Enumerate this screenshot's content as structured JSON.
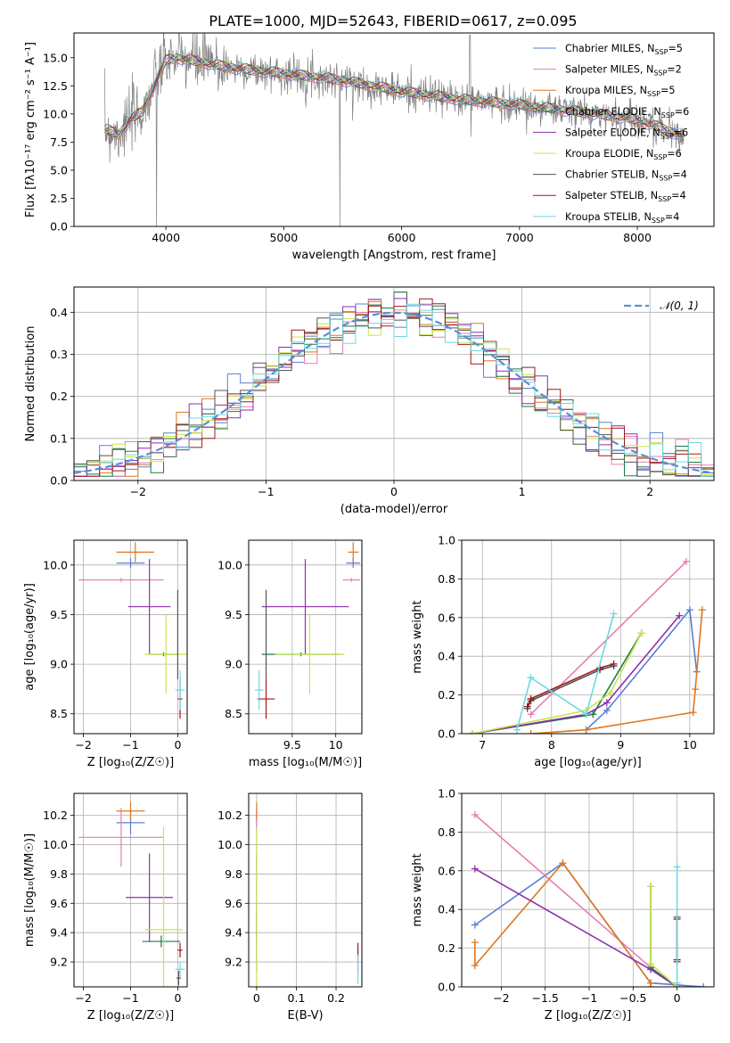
{
  "figure": {
    "title": "PLATE=1000, MJD=52643, FIBERID=0617, z=0.095"
  },
  "series_colors": {
    "Chabrier MILES": "#5b7fd6",
    "Salpeter MILES": "#e67fb0",
    "Kroupa MILES": "#dd7722",
    "Chabrier ELODIE": "#1f7a4a",
    "Salpeter ELODIE": "#8e2fb0",
    "Kroupa ELODIE": "#c8e64a",
    "Chabrier STELIB": "#555555",
    "Salpeter STELIB": "#a01818",
    "Kroupa STELIB": "#6ed8e0"
  },
  "chart_data": [
    {
      "id": "spectrum",
      "type": "line",
      "title": "PLATE=1000, MJD=52643, FIBERID=0617, z=0.095",
      "xlabel": "wavelength [Angstrom, rest frame]",
      "ylabel": "Flux [fλ10⁻¹⁷ erg cm⁻² s⁻¹ A⁻¹]",
      "xlim": [
        3220,
        8650
      ],
      "ylim": [
        0,
        17.2
      ],
      "xticks": [
        4000,
        5000,
        6000,
        7000,
        8000
      ],
      "yticks": [
        0.0,
        2.5,
        5.0,
        7.5,
        10.0,
        12.5,
        15.0
      ],
      "legend_position": "top-right",
      "legend": [
        {
          "label": "Chabrier MILES, N",
          "sub": "SSP",
          "suffix": "=5"
        },
        {
          "label": "Salpeter MILES, N",
          "sub": "SSP",
          "suffix": "=2"
        },
        {
          "label": "Kroupa MILES, N",
          "sub": "SSP",
          "suffix": "=5"
        },
        {
          "label": "Chabrier ELODIE, N",
          "sub": "SSP",
          "suffix": "=6"
        },
        {
          "label": "Salpeter ELODIE, N",
          "sub": "SSP",
          "suffix": "=6"
        },
        {
          "label": "Kroupa ELODIE, N",
          "sub": "SSP",
          "suffix": "=6"
        },
        {
          "label": "Chabrier STELIB, N",
          "sub": "SSP",
          "suffix": "=4"
        },
        {
          "label": "Salpeter STELIB, N",
          "sub": "SSP",
          "suffix": "=4"
        },
        {
          "label": "Kroupa STELIB, N",
          "sub": "SSP",
          "suffix": "=4"
        }
      ],
      "data_envelope": {
        "wavelength": [
          3500,
          3600,
          3700,
          3800,
          3900,
          4000,
          4100,
          4300,
          4500,
          4800,
          5000,
          5500,
          6000,
          6500,
          7000,
          7500,
          8000,
          8400
        ],
        "flux": [
          8.6,
          8.2,
          9.5,
          10.2,
          12.5,
          14.8,
          15.0,
          14.6,
          14.2,
          13.8,
          13.6,
          13.0,
          12.0,
          11.3,
          10.8,
          10.2,
          9.5,
          8.0
        ]
      }
    },
    {
      "id": "residuals",
      "type": "line",
      "xlabel": "(data-model)/error",
      "ylabel": "Normed distribution",
      "xlim": [
        -2.5,
        2.5
      ],
      "ylim": [
        0,
        0.46
      ],
      "xticks": [
        -2,
        -1,
        0,
        1,
        2
      ],
      "yticks": [
        0.0,
        0.1,
        0.2,
        0.3,
        0.4
      ],
      "grid": true,
      "legend_position": "top-right",
      "legend": [
        {
          "label": "𝒩(0, 1)"
        }
      ],
      "gaussian": {
        "mu": 0,
        "sigma": 1
      }
    },
    {
      "id": "age_vs_Z",
      "type": "scatter",
      "xlabel": "Z [log₁₀(Z/Z☉)]",
      "ylabel": "age  [log₁₀(age/yr)]",
      "xlim": [
        -2.2,
        0.2
      ],
      "ylim": [
        8.3,
        10.25
      ],
      "xticks": [
        -2,
        -1,
        0
      ],
      "yticks": [
        8.5,
        9.0,
        9.5,
        10.0
      ],
      "grid": true,
      "points": [
        {
          "series": "Chabrier MILES",
          "x": -1.0,
          "y": 10.02,
          "xerr": 0.3,
          "yerr": 0.05
        },
        {
          "series": "Salpeter MILES",
          "x": -1.2,
          "y": 9.85,
          "xerr": 0.9,
          "yerr": 0.02
        },
        {
          "series": "Kroupa MILES",
          "x": -0.9,
          "y": 10.13,
          "xerr": 0.4,
          "yerr": 0.1
        },
        {
          "series": "Chabrier ELODIE",
          "x": -0.3,
          "y": 9.1,
          "xerr": 0.3,
          "yerr": 0.02
        },
        {
          "series": "Salpeter ELODIE",
          "x": -0.6,
          "y": 9.58,
          "xerr": 0.45,
          "yerr": 0.48
        },
        {
          "series": "Kroupa ELODIE",
          "x": -0.25,
          "y": 9.1,
          "xerr": 0.45,
          "yerr": 0.4
        },
        {
          "series": "Chabrier STELIB",
          "x": 0.0,
          "y": 9.3,
          "xerr": 0.0,
          "yerr": 0.45
        },
        {
          "series": "Salpeter STELIB",
          "x": 0.05,
          "y": 8.65,
          "xerr": 0.05,
          "yerr": 0.2
        },
        {
          "series": "Kroupa STELIB",
          "x": 0.05,
          "y": 8.74,
          "xerr": 0.1,
          "yerr": 0.2
        }
      ]
    },
    {
      "id": "age_vs_mass",
      "type": "scatter",
      "xlabel": "mass [log₁₀(M/M☉)]",
      "ylabel": "",
      "xlim": [
        9.0,
        10.3
      ],
      "ylim": [
        8.3,
        10.25
      ],
      "xticks": [
        9.5,
        10.0
      ],
      "yticks": [
        8.5,
        9.0,
        9.5,
        10.0
      ],
      "grid": true,
      "points": [
        {
          "series": "Chabrier MILES",
          "x": 10.2,
          "y": 10.02,
          "xerr": 0.08,
          "yerr": 0.05
        },
        {
          "series": "Salpeter MILES",
          "x": 10.18,
          "y": 9.85,
          "xerr": 0.1,
          "yerr": 0.02
        },
        {
          "series": "Kroupa MILES",
          "x": 10.2,
          "y": 10.13,
          "xerr": 0.06,
          "yerr": 0.1
        },
        {
          "series": "Chabrier ELODIE",
          "x": 9.6,
          "y": 9.1,
          "xerr": 0.45,
          "yerr": 0.02
        },
        {
          "series": "Salpeter ELODIE",
          "x": 9.65,
          "y": 9.58,
          "xerr": 0.5,
          "yerr": 0.48
        },
        {
          "series": "Kroupa ELODIE",
          "x": 9.7,
          "y": 9.1,
          "xerr": 0.4,
          "yerr": 0.4
        },
        {
          "series": "Chabrier STELIB",
          "x": 9.2,
          "y": 9.3,
          "xerr": 0.0,
          "yerr": 0.45
        },
        {
          "series": "Salpeter STELIB",
          "x": 9.2,
          "y": 8.65,
          "xerr": 0.1,
          "yerr": 0.2
        },
        {
          "series": "Kroupa STELIB",
          "x": 9.12,
          "y": 8.74,
          "xerr": 0.05,
          "yerr": 0.2
        }
      ]
    },
    {
      "id": "weight_vs_age",
      "type": "line",
      "xlabel": "age  [log₁₀(age/yr)]",
      "ylabel": "mass weight",
      "xlim": [
        6.7,
        10.35
      ],
      "ylim": [
        0,
        1.0
      ],
      "xticks": [
        7,
        8,
        9,
        10
      ],
      "yticks": [
        0.0,
        0.2,
        0.4,
        0.6,
        0.8,
        1.0
      ],
      "grid": true,
      "series": [
        {
          "name": "Chabrier MILES",
          "x": [
            8.5,
            8.8,
            10.0,
            10.1
          ],
          "y": [
            0.02,
            0.12,
            0.64,
            0.32
          ]
        },
        {
          "name": "Salpeter MILES",
          "x": [
            7.7,
            9.95
          ],
          "y": [
            0.1,
            0.89
          ]
        },
        {
          "name": "Kroupa MILES",
          "x": [
            7.7,
            8.5,
            10.05,
            10.08,
            10.18
          ],
          "y": [
            0.0,
            0.02,
            0.11,
            0.23,
            0.64
          ]
        },
        {
          "name": "Chabrier ELODIE",
          "x": [
            6.85,
            8.6,
            9.3
          ],
          "y": [
            0.0,
            0.1,
            0.52
          ]
        },
        {
          "name": "Salpeter ELODIE",
          "x": [
            6.85,
            8.5,
            8.8,
            9.85
          ],
          "y": [
            0.0,
            0.1,
            0.16,
            0.61
          ]
        },
        {
          "name": "Kroupa ELODIE",
          "x": [
            6.85,
            8.5,
            8.85,
            9.3
          ],
          "y": [
            0.0,
            0.12,
            0.21,
            0.52
          ]
        },
        {
          "name": "Chabrier STELIB",
          "x": [
            7.65,
            7.7,
            8.7,
            8.9
          ],
          "y": [
            0.13,
            0.17,
            0.33,
            0.35
          ]
        },
        {
          "name": "Salpeter STELIB",
          "x": [
            7.65,
            7.7,
            8.7,
            8.9
          ],
          "y": [
            0.14,
            0.18,
            0.34,
            0.36
          ]
        },
        {
          "name": "Kroupa STELIB",
          "x": [
            7.5,
            7.7,
            8.5,
            8.9
          ],
          "y": [
            0.02,
            0.29,
            0.1,
            0.62
          ]
        }
      ]
    },
    {
      "id": "mass_vs_Z",
      "type": "scatter",
      "xlabel": "Z [log₁₀(Z/Z☉)]",
      "ylabel": "mass [log₁₀(M/M☉)]",
      "xlim": [
        -2.2,
        0.2
      ],
      "ylim": [
        9.03,
        10.35
      ],
      "xticks": [
        -2,
        -1,
        0
      ],
      "yticks": [
        9.2,
        9.4,
        9.6,
        9.8,
        10.0,
        10.2
      ],
      "grid": true,
      "points": [
        {
          "series": "Chabrier MILES",
          "x": -1.0,
          "y": 10.15,
          "xerr": 0.3,
          "yerr": 0.08
        },
        {
          "series": "Salpeter MILES",
          "x": -1.2,
          "y": 10.05,
          "xerr": 0.9,
          "yerr": 0.2
        },
        {
          "series": "Kroupa MILES",
          "x": -1.0,
          "y": 10.23,
          "xerr": 0.3,
          "yerr": 0.06
        },
        {
          "series": "Chabrier ELODIE",
          "x": -0.35,
          "y": 9.34,
          "xerr": 0.4,
          "yerr": 0.04
        },
        {
          "series": "Salpeter ELODIE",
          "x": -0.6,
          "y": 9.64,
          "xerr": 0.5,
          "yerr": 0.3
        },
        {
          "series": "Kroupa ELODIE",
          "x": -0.3,
          "y": 9.42,
          "xerr": 0.4,
          "yerr": 0.7
        },
        {
          "series": "Chabrier STELIB",
          "x": 0.02,
          "y": 9.09,
          "xerr": 0.05,
          "yerr": 0.05
        },
        {
          "series": "Salpeter STELIB",
          "x": 0.05,
          "y": 9.28,
          "xerr": 0.05,
          "yerr": 0.05
        },
        {
          "series": "Kroupa STELIB",
          "x": 0.05,
          "y": 9.15,
          "xerr": 0.1,
          "yerr": 0.05
        }
      ]
    },
    {
      "id": "mass_vs_EBV",
      "type": "scatter",
      "xlabel": "E(B-V)",
      "ylabel": "",
      "xlim": [
        -0.02,
        0.265
      ],
      "ylim": [
        9.03,
        10.35
      ],
      "xticks": [
        0.0,
        0.1,
        0.2
      ],
      "yticks": [
        9.2,
        9.4,
        9.6,
        9.8,
        10.0,
        10.2
      ],
      "grid": true,
      "points": [
        {
          "series": "Chabrier MILES",
          "x": 0.0,
          "y": 10.15,
          "xerr": 0.0,
          "yerr": 0.08
        },
        {
          "series": "Salpeter MILES",
          "x": 0.0,
          "y": 10.05,
          "xerr": 0.0,
          "yerr": 0.2
        },
        {
          "series": "Kroupa MILES",
          "x": 0.0,
          "y": 10.23,
          "xerr": 0.0,
          "yerr": 0.06
        },
        {
          "series": "Chabrier ELODIE",
          "x": 0.0,
          "y": 9.34,
          "xerr": 0.0,
          "yerr": 0.2
        },
        {
          "series": "Salpeter ELODIE",
          "x": 0.0,
          "y": 9.64,
          "xerr": 0.0,
          "yerr": 0.3
        },
        {
          "series": "Kroupa ELODIE",
          "x": 0.0,
          "y": 9.42,
          "xerr": 0.0,
          "yerr": 0.7
        },
        {
          "series": "Chabrier STELIB",
          "x": 0.255,
          "y": 9.2,
          "xerr": 0.0,
          "yerr": 0.08
        },
        {
          "series": "Salpeter STELIB",
          "x": 0.255,
          "y": 9.28,
          "xerr": 0.0,
          "yerr": 0.05
        },
        {
          "series": "Kroupa STELIB",
          "x": 0.255,
          "y": 9.15,
          "xerr": 0.0,
          "yerr": 0.1
        }
      ]
    },
    {
      "id": "weight_vs_Z",
      "type": "line",
      "xlabel": "Z [log₁₀(Z/Z☉)]",
      "ylabel": "mass weight",
      "xlim": [
        -2.45,
        0.42
      ],
      "ylim": [
        0,
        1.0
      ],
      "xticks": [
        -2.0,
        -1.5,
        -1.0,
        -0.5,
        0.0
      ],
      "yticks": [
        0.0,
        0.2,
        0.4,
        0.6,
        0.8,
        1.0
      ],
      "grid": true,
      "series": [
        {
          "name": "Chabrier MILES",
          "x": [
            -2.3,
            -1.3,
            -0.3,
            0.3
          ],
          "y": [
            0.32,
            0.64,
            0.02,
            0.0
          ]
        },
        {
          "name": "Salpeter MILES",
          "x": [
            -2.3,
            -0.3
          ],
          "y": [
            0.89,
            0.1
          ]
        },
        {
          "name": "Kroupa MILES",
          "x": [
            -2.3,
            -2.3,
            -1.3,
            -0.3,
            -0.3
          ],
          "y": [
            0.23,
            0.11,
            0.64,
            0.02,
            0.0
          ]
        },
        {
          "name": "Chabrier ELODIE",
          "x": [
            -0.3,
            -0.3,
            0.0
          ],
          "y": [
            0.52,
            0.1,
            0.0
          ]
        },
        {
          "name": "Salpeter ELODIE",
          "x": [
            -2.3,
            -0.3,
            0.0
          ],
          "y": [
            0.61,
            0.09,
            0.0
          ]
        },
        {
          "name": "Kroupa ELODIE",
          "x": [
            -0.3,
            -0.3,
            0.0
          ],
          "y": [
            0.52,
            0.12,
            0.0
          ]
        },
        {
          "name": "Chabrier STELIB",
          "x": [
            0.0,
            0.0
          ],
          "y": [
            0.13,
            0.35
          ]
        },
        {
          "name": "Salpeter STELIB",
          "x": [
            0.0,
            0.0
          ],
          "y": [
            0.14,
            0.36
          ]
        },
        {
          "name": "Kroupa STELIB",
          "x": [
            0.0,
            0.0
          ],
          "y": [
            0.02,
            0.62
          ]
        }
      ]
    }
  ]
}
